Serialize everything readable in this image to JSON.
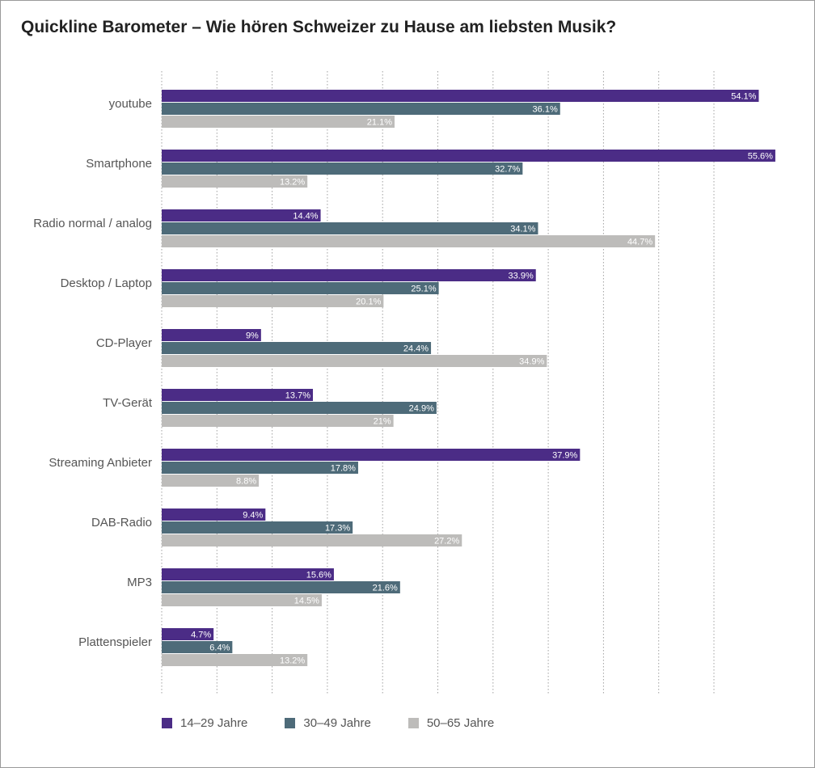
{
  "title": "Quickline Barometer – Wie hören Schweizer zu Hause am liebsten Musik?",
  "colors": {
    "series_1": "#4b2c86",
    "series_2": "#4e6b79",
    "series_3": "#bdbcba",
    "grid": "#a0a0a0"
  },
  "chart_data": {
    "type": "bar",
    "orientation": "horizontal",
    "title": "Quickline Barometer – Wie hören Schweizer zu Hause am liebsten Musik?",
    "categories": [
      "youtube",
      "Smartphone",
      "Radio normal / analog",
      "Desktop / Laptop",
      "CD-Player",
      "TV-Gerät",
      "Streaming Anbieter",
      "DAB-Radio",
      "MP3",
      "Plattenspieler"
    ],
    "series": [
      {
        "name": "14–29 Jahre",
        "values": [
          54.1,
          55.6,
          14.4,
          33.9,
          9,
          13.7,
          37.9,
          9.4,
          15.6,
          4.7
        ],
        "labels": [
          "54.1%",
          "55.6%",
          "14.4%",
          "33.9%",
          "9%",
          "13.7%",
          "37.9%",
          "9.4%",
          "15.6%",
          "4.7%"
        ]
      },
      {
        "name": "30–49 Jahre",
        "values": [
          36.1,
          32.7,
          34.1,
          25.1,
          24.4,
          24.9,
          17.8,
          17.3,
          21.6,
          6.4
        ],
        "labels": [
          "36.1%",
          "32.7%",
          "34.1%",
          "25.1%",
          "24.4%",
          "24.9%",
          "17.8%",
          "17.3%",
          "21.6%",
          "6.4%"
        ]
      },
      {
        "name": "50–65 Jahre",
        "values": [
          21.1,
          13.2,
          44.7,
          20.1,
          34.9,
          21,
          8.8,
          27.2,
          14.5,
          13.2
        ],
        "labels": [
          "21.1%",
          "13.2%",
          "44.7%",
          "20.1%",
          "34.9%",
          "21%",
          "8.8%",
          "27.2%",
          "14.5%",
          "13.2%"
        ]
      }
    ],
    "xlim": [
      0,
      55
    ],
    "grid": true,
    "legend_position": "bottom-left"
  }
}
